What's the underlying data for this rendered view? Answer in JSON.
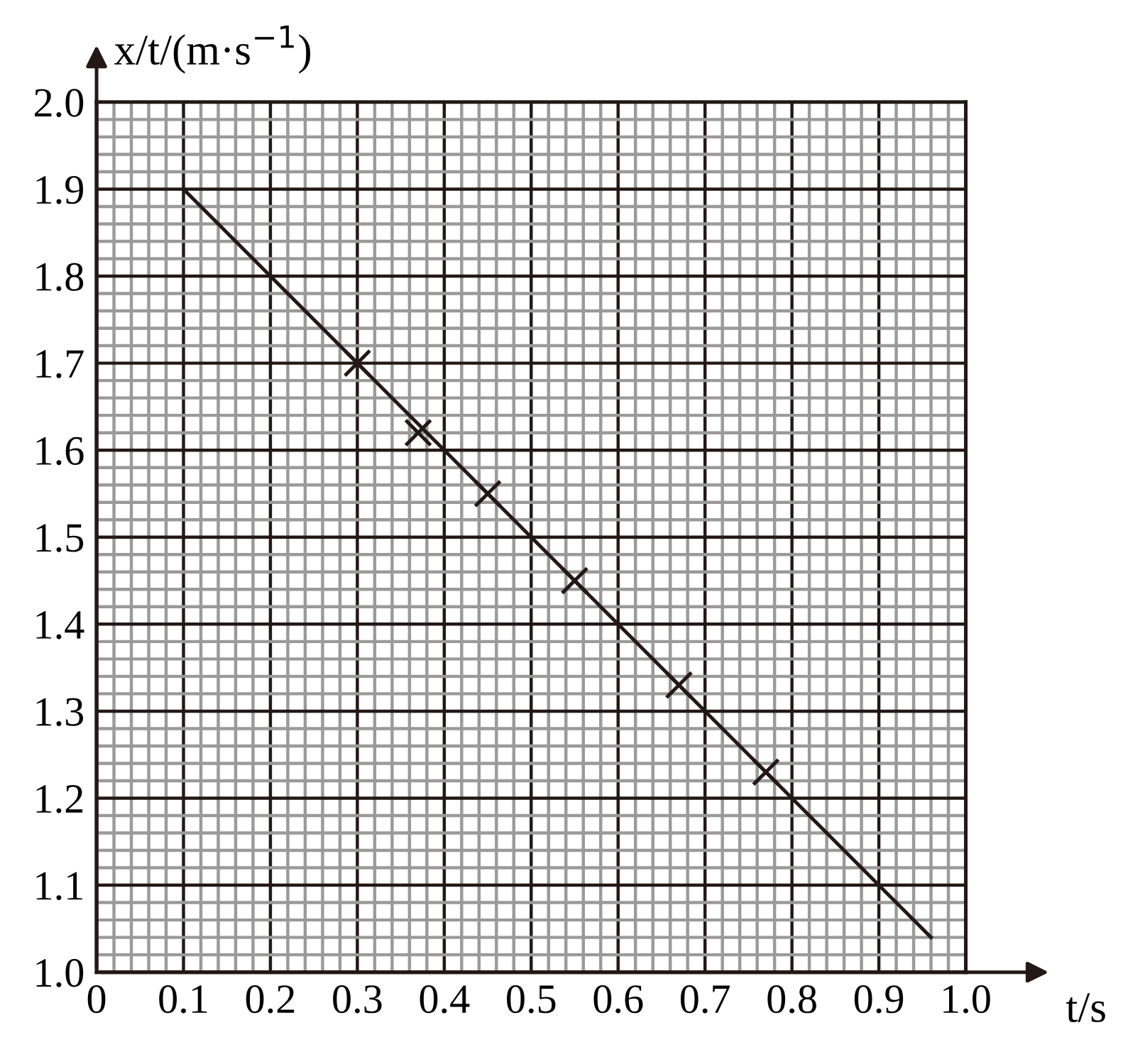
{
  "chart_data": {
    "type": "scatter",
    "xlabel": "t/s",
    "ylabel": "x/t/(m·s$^{−1}$)",
    "series": [
      {
        "color": "#231815",
        "marker": "cross",
        "x": [
          0.3,
          0.37,
          0.45,
          0.55,
          0.67,
          0.77
        ],
        "values": [
          1.7,
          1.62,
          1.55,
          1.45,
          1.33,
          1.23
        ]
      },
      {
        "type": "line",
        "color": "#231815",
        "marker": "none",
        "line_style": "solid",
        "x": [
          0.1,
          0.96
        ],
        "values": [
          1.9,
          1.04
        ]
      }
    ],
    "xlim": [
      0,
      1.0
    ],
    "xticks": [
      0,
      0.1,
      0.2,
      0.3,
      0.4,
      0.5,
      0.6,
      0.7,
      0.8,
      0.9,
      {
        "value": 1.0,
        "label": "1.0"
      }
    ],
    "ylim": [
      1.0,
      2.0
    ],
    "yticks": [
      {
        "value": 1.0,
        "label": "1.0"
      },
      1.1,
      1.2,
      1.3,
      1.4,
      1.5,
      1.6,
      1.7,
      1.8,
      1.9,
      {
        "value": 2.0,
        "label": "2.0"
      }
    ],
    "grid": true
  }
}
